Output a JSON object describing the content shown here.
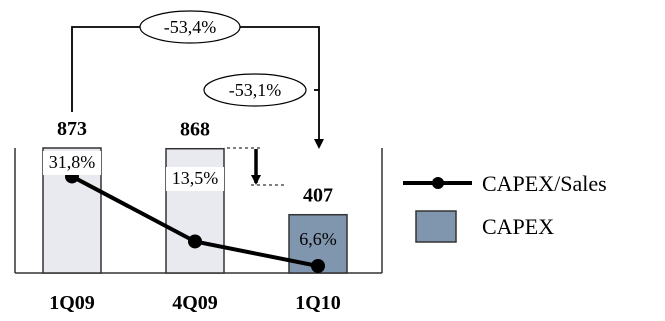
{
  "chart_data": {
    "type": "bar",
    "categories": [
      "1Q09",
      "4Q09",
      "1Q10"
    ],
    "series": [
      {
        "name": "CAPEX",
        "type": "bar",
        "values": [
          873,
          868,
          407
        ],
        "labels": [
          "873",
          "868",
          "407"
        ]
      },
      {
        "name": "CAPEX/Sales",
        "type": "line",
        "values": [
          31.8,
          13.5,
          6.6
        ],
        "labels": [
          "31,8%",
          "13,5%",
          "6,6%"
        ]
      }
    ],
    "annotations": [
      {
        "text": "-53,4%",
        "from": "1Q09",
        "to": "1Q10"
      },
      {
        "text": "-53,1%",
        "from": "4Q09",
        "to": "1Q10"
      }
    ],
    "colors": {
      "bar_fill": "#e8eaf0",
      "bar_fill_highlight": "#8096ae",
      "bar_stroke": "#333333",
      "line": "#000000"
    },
    "legend_position": "right"
  }
}
